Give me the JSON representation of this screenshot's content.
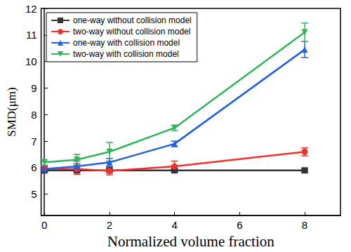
{
  "chart_data": {
    "type": "line",
    "x_label": "Normalized volume fraction",
    "y_label": "SMD(μm)",
    "x": [
      0,
      1,
      2,
      4,
      8
    ],
    "xlim": [
      -0.1,
      9.1
    ],
    "xticks": [
      0,
      2,
      4,
      6,
      8
    ],
    "ylim": [
      4.2,
      12
    ],
    "yticks": [
      5,
      6,
      7,
      8,
      9,
      10,
      11,
      12
    ],
    "grid": false,
    "legend": "upper left",
    "series": [
      {
        "name": "one-way without collision model",
        "color": "#333333",
        "marker": "square",
        "values": [
          5.9,
          5.9,
          5.9,
          5.9,
          5.9
        ],
        "errors": [
          0.05,
          0.05,
          0.05,
          0.05,
          0.05
        ]
      },
      {
        "name": "two-way without collision model",
        "color": "#f0302c",
        "marker": "circle",
        "values": [
          5.95,
          5.95,
          5.88,
          6.05,
          6.6
        ],
        "errors": [
          0.1,
          0.2,
          0.15,
          0.2,
          0.15
        ]
      },
      {
        "name": "one-way with collision model",
        "color": "#1f5fe0",
        "marker": "triangle-up",
        "values": [
          5.95,
          6.05,
          6.2,
          6.9,
          10.45
        ],
        "errors": [
          0.1,
          0.2,
          0.15,
          0.1,
          0.3
        ]
      },
      {
        "name": "two-way with collision model",
        "color": "#2fb45a",
        "marker": "triangle-down",
        "values": [
          6.2,
          6.3,
          6.6,
          7.5,
          11.1
        ],
        "errors": [
          0.1,
          0.2,
          0.35,
          0.1,
          0.35
        ]
      }
    ]
  }
}
